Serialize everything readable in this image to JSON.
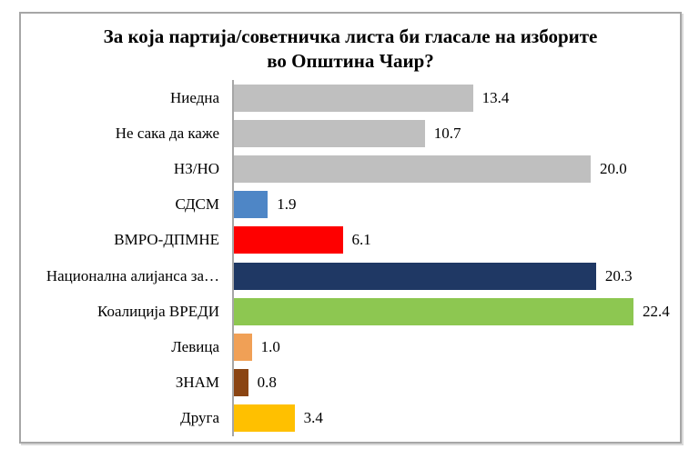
{
  "chart_data": {
    "type": "bar",
    "orientation": "horizontal",
    "title": "За која партија/советничка листа би гласале на изборите во Општина Чаир?",
    "title_lines": [
      "За која партија/советничка листа би гласале на изборите",
      "во Општина Чаир?"
    ],
    "categories": [
      "Ниедна",
      "Не сака да каже",
      "НЗ/НО",
      "СДСМ",
      "ВМРО-ДПМНЕ",
      "Национална алијанса за…",
      "Коалиција ВРЕДИ",
      "Левица",
      "ЗНАМ",
      "Друга"
    ],
    "values": [
      13.4,
      10.7,
      20.0,
      1.9,
      6.1,
      20.3,
      22.4,
      1.0,
      0.8,
      3.4
    ],
    "value_labels": [
      "13.4",
      "10.7",
      "20.0",
      "1.9",
      "6.1",
      "20.3",
      "22.4",
      "1.0",
      "0.8",
      "3.4"
    ],
    "bar_colors": [
      "#bfbfbf",
      "#bfbfbf",
      "#bfbfbf",
      "#4e86c6",
      "#fe0000",
      "#1f3864",
      "#8dc751",
      "#f0a056",
      "#8a4412",
      "#ffc000"
    ],
    "xlabel": "",
    "ylabel": "",
    "xlim": [
      0,
      25
    ],
    "grid": false,
    "legend": "none",
    "data_labels_shown": true,
    "frame_border_color": "#a6a6a6",
    "axis_line_color": "#a6a6a6"
  }
}
